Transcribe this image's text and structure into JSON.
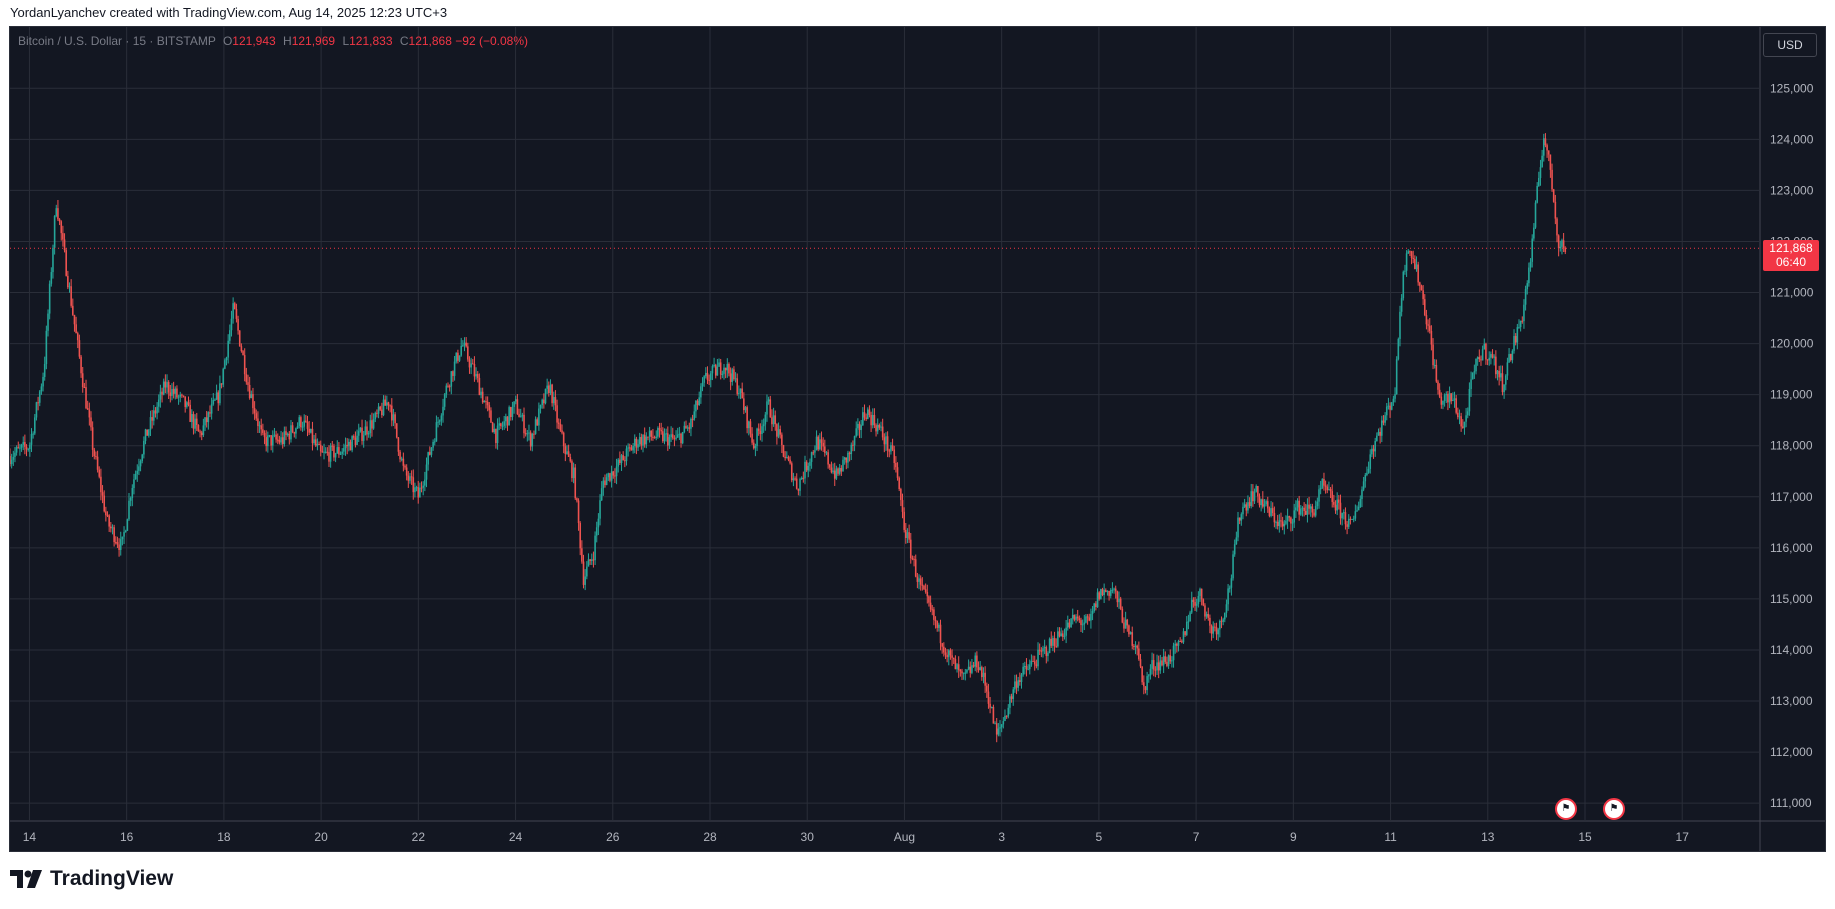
{
  "header": {
    "credit": "YordanLyanchev created with TradingView.com, Aug 14, 2025 12:23 UTC+3"
  },
  "legend": {
    "symbol": "Bitcoin / U.S. Dollar · 15 · BITSTAMP",
    "o_label": "O",
    "open": "121,943",
    "h_label": "H",
    "high": "121,969",
    "l_label": "L",
    "low": "121,833",
    "c_label": "C",
    "close": "121,868",
    "change": "−92 (−0.08%)"
  },
  "currency": "USD",
  "last_price": {
    "price": "121,868",
    "countdown": "06:40"
  },
  "brand": {
    "name": "TradingView",
    "icon": "tradingview-logo-icon"
  },
  "events": [
    {
      "icon": "us-flag-icon"
    },
    {
      "icon": "us-flag-icon"
    }
  ],
  "colors": {
    "background": "#131722",
    "grid": "#2a2e39",
    "up": "#26a69a",
    "down": "#ef5350",
    "last_price": "#f23645"
  },
  "chart_data": {
    "type": "candlestick",
    "title": "Bitcoin / U.S. Dollar · 15 · BITSTAMP",
    "y_ticks": [
      111000,
      112000,
      113000,
      114000,
      115000,
      116000,
      117000,
      118000,
      119000,
      120000,
      121000,
      122000,
      123000,
      124000,
      125000
    ],
    "y_tick_labels": [
      "111,000",
      "112,000",
      "113,000",
      "114,000",
      "115,000",
      "116,000",
      "117,000",
      "118,000",
      "119,000",
      "120,000",
      "121,000",
      "122,000",
      "123,000",
      "124,000",
      "125,000"
    ],
    "ylim": [
      110650,
      126200
    ],
    "xlim": [
      13.6,
      49.6
    ],
    "x_ticks": [
      {
        "day": 14,
        "label": "14"
      },
      {
        "day": 16,
        "label": "16"
      },
      {
        "day": 18,
        "label": "18"
      },
      {
        "day": 20,
        "label": "20"
      },
      {
        "day": 22,
        "label": "22"
      },
      {
        "day": 24,
        "label": "24"
      },
      {
        "day": 26,
        "label": "26"
      },
      {
        "day": 28,
        "label": "28"
      },
      {
        "day": 30,
        "label": "30"
      },
      {
        "day": 32,
        "label": "Aug"
      },
      {
        "day": 34,
        "label": "3"
      },
      {
        "day": 36,
        "label": "5"
      },
      {
        "day": 38,
        "label": "7"
      },
      {
        "day": 40,
        "label": "9"
      },
      {
        "day": 42,
        "label": "11"
      },
      {
        "day": 44,
        "label": "13"
      },
      {
        "day": 46,
        "label": "15"
      },
      {
        "day": 48,
        "label": "17"
      }
    ],
    "price_path": [
      [
        13.6,
        117800
      ],
      [
        14.0,
        118000
      ],
      [
        14.3,
        119500
      ],
      [
        14.55,
        122800
      ],
      [
        14.8,
        121200
      ],
      [
        15.0,
        119900
      ],
      [
        15.3,
        118000
      ],
      [
        15.6,
        116500
      ],
      [
        15.9,
        116000
      ],
      [
        16.1,
        117200
      ],
      [
        16.4,
        118200
      ],
      [
        16.8,
        119200
      ],
      [
        17.2,
        118800
      ],
      [
        17.5,
        118200
      ],
      [
        17.9,
        119000
      ],
      [
        18.2,
        120700
      ],
      [
        18.5,
        119200
      ],
      [
        18.8,
        118100
      ],
      [
        19.2,
        118100
      ],
      [
        19.6,
        118500
      ],
      [
        20.0,
        117800
      ],
      [
        20.4,
        117900
      ],
      [
        20.8,
        118200
      ],
      [
        21.1,
        118500
      ],
      [
        21.4,
        118900
      ],
      [
        21.7,
        117500
      ],
      [
        22.0,
        117000
      ],
      [
        22.3,
        118100
      ],
      [
        22.6,
        119200
      ],
      [
        22.9,
        120000
      ],
      [
        23.2,
        119300
      ],
      [
        23.6,
        118200
      ],
      [
        24.0,
        118800
      ],
      [
        24.3,
        118100
      ],
      [
        24.7,
        119200
      ],
      [
        24.9,
        118300
      ],
      [
        25.2,
        117400
      ],
      [
        25.4,
        115400
      ],
      [
        25.6,
        115900
      ],
      [
        25.8,
        117300
      ],
      [
        26.1,
        117600
      ],
      [
        26.5,
        118100
      ],
      [
        26.9,
        118200
      ],
      [
        27.3,
        118100
      ],
      [
        27.6,
        118400
      ],
      [
        27.9,
        119300
      ],
      [
        28.3,
        119600
      ],
      [
        28.6,
        119100
      ],
      [
        28.9,
        118000
      ],
      [
        29.2,
        118800
      ],
      [
        29.5,
        117900
      ],
      [
        29.8,
        117200
      ],
      [
        30.2,
        118100
      ],
      [
        30.6,
        117400
      ],
      [
        30.9,
        117900
      ],
      [
        31.2,
        118700
      ],
      [
        31.5,
        118300
      ],
      [
        31.8,
        117700
      ],
      [
        32.0,
        116400
      ],
      [
        32.3,
        115300
      ],
      [
        32.6,
        114600
      ],
      [
        32.9,
        113900
      ],
      [
        33.2,
        113400
      ],
      [
        33.5,
        113800
      ],
      [
        33.7,
        113200
      ],
      [
        33.9,
        112300
      ],
      [
        34.1,
        112800
      ],
      [
        34.3,
        113400
      ],
      [
        34.7,
        113800
      ],
      [
        35.1,
        114200
      ],
      [
        35.5,
        114600
      ],
      [
        35.8,
        114500
      ],
      [
        36.0,
        115100
      ],
      [
        36.3,
        115200
      ],
      [
        36.6,
        114300
      ],
      [
        36.8,
        114100
      ],
      [
        36.9,
        113200
      ],
      [
        37.1,
        113700
      ],
      [
        37.4,
        113800
      ],
      [
        37.7,
        114100
      ],
      [
        37.9,
        114900
      ],
      [
        38.1,
        115100
      ],
      [
        38.3,
        114400
      ],
      [
        38.5,
        114500
      ],
      [
        38.7,
        115300
      ],
      [
        38.9,
        116700
      ],
      [
        39.2,
        117100
      ],
      [
        39.5,
        116700
      ],
      [
        39.8,
        116400
      ],
      [
        40.1,
        116800
      ],
      [
        40.4,
        116700
      ],
      [
        40.6,
        117200
      ],
      [
        40.9,
        116800
      ],
      [
        41.2,
        116400
      ],
      [
        41.4,
        117100
      ],
      [
        41.6,
        117900
      ],
      [
        41.9,
        118600
      ],
      [
        42.1,
        119100
      ],
      [
        42.2,
        120800
      ],
      [
        42.35,
        122000
      ],
      [
        42.6,
        121200
      ],
      [
        42.8,
        120200
      ],
      [
        43.0,
        118900
      ],
      [
        43.3,
        118900
      ],
      [
        43.5,
        118300
      ],
      [
        43.7,
        119400
      ],
      [
        43.9,
        119900
      ],
      [
        44.1,
        119700
      ],
      [
        44.3,
        119200
      ],
      [
        44.5,
        119900
      ],
      [
        44.7,
        120500
      ],
      [
        44.9,
        121800
      ],
      [
        45.0,
        122800
      ],
      [
        45.15,
        124100
      ],
      [
        45.3,
        123300
      ],
      [
        45.45,
        122000
      ],
      [
        45.6,
        121868
      ]
    ]
  }
}
